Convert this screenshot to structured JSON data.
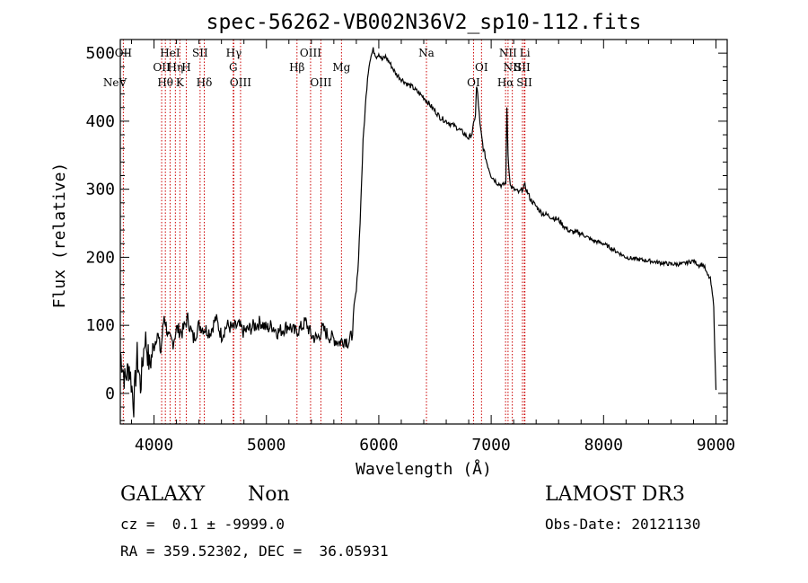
{
  "chart_data": {
    "type": "line",
    "title": "spec-56262-VB002N36V2_sp10-112.fits",
    "xlabel": "Wavelength (Å)",
    "ylabel": "Flux (relative)",
    "xlim": [
      3700,
      9100
    ],
    "ylim": [
      -45,
      520
    ],
    "xticks": [
      4000,
      5000,
      6000,
      7000,
      8000,
      9000
    ],
    "yticks": [
      0,
      100,
      200,
      300,
      400,
      500
    ],
    "grid": false,
    "series": [
      {
        "name": "flux",
        "x": [
          3700,
          3740,
          3780,
          3820,
          3850,
          3880,
          3920,
          3960,
          4000,
          4030,
          4060,
          4090,
          4130,
          4170,
          4200,
          4250,
          4300,
          4350,
          4400,
          4450,
          4500,
          4550,
          4600,
          4650,
          4700,
          4750,
          4800,
          4850,
          4900,
          4950,
          5000,
          5050,
          5100,
          5150,
          5200,
          5250,
          5300,
          5350,
          5400,
          5450,
          5500,
          5550,
          5600,
          5650,
          5700,
          5730,
          5760,
          5780,
          5800,
          5820,
          5840,
          5860,
          5880,
          5900,
          5920,
          5950,
          5980,
          6000,
          6030,
          6060,
          6100,
          6150,
          6200,
          6250,
          6300,
          6350,
          6400,
          6450,
          6500,
          6550,
          6600,
          6650,
          6700,
          6750,
          6800,
          6830,
          6860,
          6870,
          6880,
          6900,
          6930,
          6960,
          7000,
          7050,
          7100,
          7130,
          7140,
          7150,
          7170,
          7200,
          7250,
          7300,
          7350,
          7400,
          7450,
          7500,
          7550,
          7600,
          7650,
          7700,
          7800,
          7900,
          8000,
          8100,
          8200,
          8300,
          8400,
          8500,
          8600,
          8700,
          8800,
          8850,
          8880,
          8900,
          8920,
          8950,
          8980,
          8990,
          9000
        ],
        "y": [
          60,
          20,
          40,
          -15,
          55,
          10,
          85,
          40,
          70,
          90,
          60,
          115,
          80,
          75,
          95,
          90,
          110,
          80,
          100,
          95,
          90,
          110,
          85,
          100,
          95,
          100,
          90,
          95,
          100,
          105,
          95,
          100,
          90,
          95,
          100,
          90,
          95,
          105,
          85,
          80,
          95,
          85,
          80,
          75,
          80,
          75,
          85,
          120,
          150,
          200,
          280,
          370,
          420,
          465,
          490,
          505,
          495,
          500,
          490,
          495,
          485,
          470,
          462,
          455,
          450,
          442,
          435,
          425,
          415,
          405,
          400,
          395,
          390,
          383,
          375,
          382,
          410,
          450,
          440,
          395,
          360,
          340,
          320,
          310,
          305,
          310,
          420,
          350,
          305,
          300,
          295,
          305,
          285,
          275,
          265,
          262,
          258,
          255,
          245,
          238,
          235,
          225,
          220,
          210,
          200,
          197,
          195,
          192,
          190,
          190,
          195,
          188,
          190,
          185,
          175,
          168,
          130,
          60,
          5
        ]
      }
    ],
    "annotations": {
      "lines": [
        {
          "name": "NeV",
          "wavelength": 3426,
          "row": 2
        },
        {
          "name": "OII",
          "wavelength": 3727,
          "row": 0
        },
        {
          "name": "OII",
          "wavelength": 4068,
          "row": 1
        },
        {
          "name": "Hθ",
          "wavelength": 4101,
          "row": 2
        },
        {
          "name": "HeI",
          "wavelength": 4143,
          "row": 0
        },
        {
          "name": "Hη",
          "wavelength": 4190,
          "row": 1
        },
        {
          "name": "K",
          "wavelength": 4230,
          "row": 2
        },
        {
          "name": "H",
          "wavelength": 4287,
          "row": 1
        },
        {
          "name": "SII",
          "wavelength": 4410,
          "row": 0
        },
        {
          "name": "Hδ",
          "wavelength": 4447,
          "row": 2
        },
        {
          "name": "Hγ",
          "wavelength": 4710,
          "row": 0
        },
        {
          "name": "G",
          "wavelength": 4705,
          "row": 1
        },
        {
          "name": "OIII",
          "wavelength": 4770,
          "row": 2
        },
        {
          "name": "Hβ",
          "wavelength": 5272,
          "row": 1
        },
        {
          "name": "OIII",
          "wavelength": 5393,
          "row": 0
        },
        {
          "name": "OIII",
          "wavelength": 5485,
          "row": 2
        },
        {
          "name": "Mg",
          "wavelength": 5668,
          "row": 1
        },
        {
          "name": "Na",
          "wavelength": 6424,
          "row": 0
        },
        {
          "name": "OI",
          "wavelength": 6843,
          "row": 2
        },
        {
          "name": "OI",
          "wavelength": 6914,
          "row": 1
        },
        {
          "name": "NII",
          "wavelength": 7150,
          "row": 0
        },
        {
          "name": "NII",
          "wavelength": 7188,
          "row": 1
        },
        {
          "name": "Hα",
          "wavelength": 7128,
          "row": 2
        },
        {
          "name": "Li",
          "wavelength": 7300,
          "row": 0
        },
        {
          "name": "SII",
          "wavelength": 7278,
          "row": 1
        },
        {
          "name": "SII",
          "wavelength": 7295,
          "row": 2
        }
      ]
    }
  },
  "info": {
    "object_class": "GALAXY",
    "subclass": "Non",
    "survey": "LAMOST DR3",
    "redshift": "cz =  0.1 ± -9999.0",
    "obs_date": "Obs-Date: 20121130",
    "coords": "RA = 359.52302, DEC =  36.05931"
  },
  "colors": {
    "axis": "#000000",
    "line": "#000000",
    "marker_lines": "#cc0000"
  }
}
